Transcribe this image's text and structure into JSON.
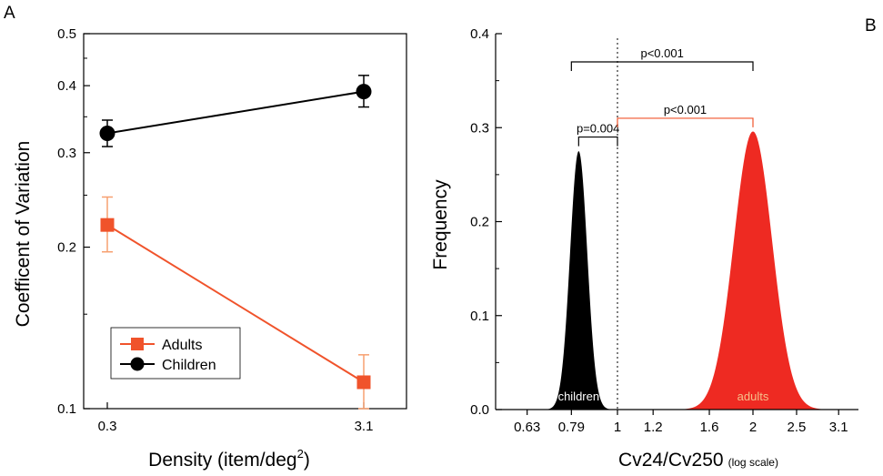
{
  "panels": {
    "a_label": "A",
    "b_label": "B"
  },
  "chart_data": [
    {
      "type": "line",
      "xlabel": "Density (item/deg",
      "xlabel_sup": "2",
      "xlabel_close": ")",
      "ylabel": "Coefficent of Variation",
      "y_scale": "log",
      "ylim": [
        0.1,
        0.5
      ],
      "yticks": [
        "0.1",
        "0.2",
        "0.3",
        "0.4",
        "0.5"
      ],
      "ytick_values": [
        0.1,
        0.2,
        0.3,
        0.4,
        0.5
      ],
      "categories": [
        "0.3",
        "3.1"
      ],
      "legend_position": "bottom-left",
      "series": [
        {
          "name": "Adults",
          "color": "#f0532b",
          "marker": "square",
          "values": [
            0.22,
            0.112
          ],
          "err_low": [
            0.196,
            0.1
          ],
          "err_high": [
            0.248,
            0.126
          ]
        },
        {
          "name": "Children",
          "color": "#000000",
          "marker": "circle",
          "values": [
            0.326,
            0.39
          ],
          "err_low": [
            0.308,
            0.365
          ],
          "err_high": [
            0.345,
            0.418
          ]
        }
      ]
    },
    {
      "type": "area",
      "xlabel": "Cv24/Cv250",
      "xlabel_note": "(log scale)",
      "ylabel": "Frequency",
      "x_scale": "log",
      "xlim": [
        0.55,
        3.4
      ],
      "ylim": [
        0,
        0.4
      ],
      "xticks": [
        "0.63",
        "0.79",
        "1",
        "1.2",
        "1.6",
        "2",
        "2.5",
        "3.1"
      ],
      "xtick_values": [
        0.63,
        0.79,
        1,
        1.2,
        1.6,
        2,
        2.5,
        3.1
      ],
      "yticks": [
        "0.0",
        "0.1",
        "0.2",
        "0.3",
        "0.4"
      ],
      "ytick_values": [
        0,
        0.1,
        0.2,
        0.3,
        0.4
      ],
      "reference_line_x": 1,
      "series": [
        {
          "name": "children",
          "color": "#000000",
          "label_color": "#ffffff",
          "peak_x": 0.82,
          "peak_y": 0.275,
          "log_sd": 0.044
        },
        {
          "name": "adults",
          "color": "#ee2a22",
          "label_color": "#f6c08a",
          "peak_x": 2.0,
          "peak_y": 0.296,
          "log_sd": 0.098
        }
      ],
      "annotations": [
        {
          "text": "p=0.004",
          "x_from": 0.82,
          "x_to": 1,
          "y": 0.29,
          "color": "#000000"
        },
        {
          "text": "p<0.001",
          "x_from": 1,
          "x_to": 2.0,
          "y": 0.31,
          "color": "#f0532b"
        },
        {
          "text": "p<0.001",
          "x_from": 0.79,
          "x_to": 2.0,
          "y": 0.37,
          "color": "#000000"
        }
      ]
    }
  ]
}
